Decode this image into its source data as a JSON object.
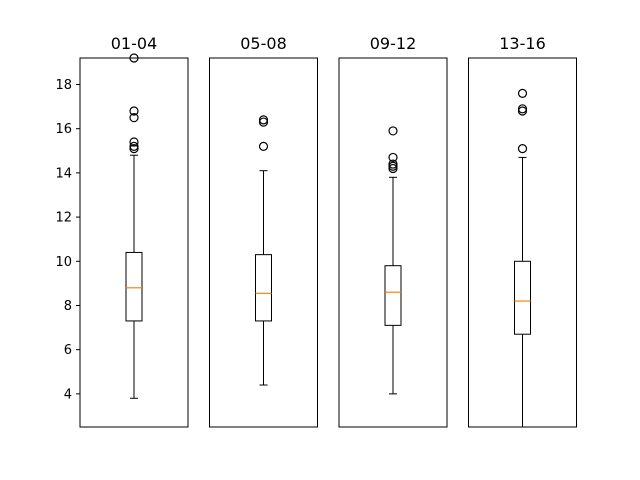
{
  "chart_data": {
    "type": "box",
    "y_axis": {
      "ylim": [
        2.5,
        19.2
      ],
      "ticks": [
        4,
        6,
        8,
        10,
        12,
        14,
        16,
        18
      ],
      "shared": true
    },
    "grid": false,
    "panels": [
      {
        "title": "01-04",
        "box": {
          "whisker_low": 3.8,
          "q1": 7.3,
          "median": 8.8,
          "q3": 10.4,
          "whisker_high": 14.8
        },
        "outliers": [
          15.1,
          15.2,
          15.4,
          16.5,
          16.8,
          19.2
        ]
      },
      {
        "title": "05-08",
        "box": {
          "whisker_low": 4.4,
          "q1": 7.3,
          "median": 8.55,
          "q3": 10.3,
          "whisker_high": 14.1
        },
        "outliers": [
          15.2,
          16.3,
          16.4
        ]
      },
      {
        "title": "09-12",
        "box": {
          "whisker_low": 4.0,
          "q1": 7.1,
          "median": 8.6,
          "q3": 9.8,
          "whisker_high": 13.8
        },
        "outliers": [
          14.2,
          14.3,
          14.4,
          14.7,
          15.9
        ]
      },
      {
        "title": "13-16",
        "box": {
          "whisker_low": 2.5,
          "q1": 6.7,
          "median": 8.2,
          "q3": 10.0,
          "whisker_high": 14.7
        },
        "outliers": [
          15.1,
          16.8,
          16.9,
          17.6
        ]
      }
    ],
    "colors": {
      "median": "#ff7f0e",
      "box": "#000000",
      "outlier_edge": "#000000"
    }
  }
}
